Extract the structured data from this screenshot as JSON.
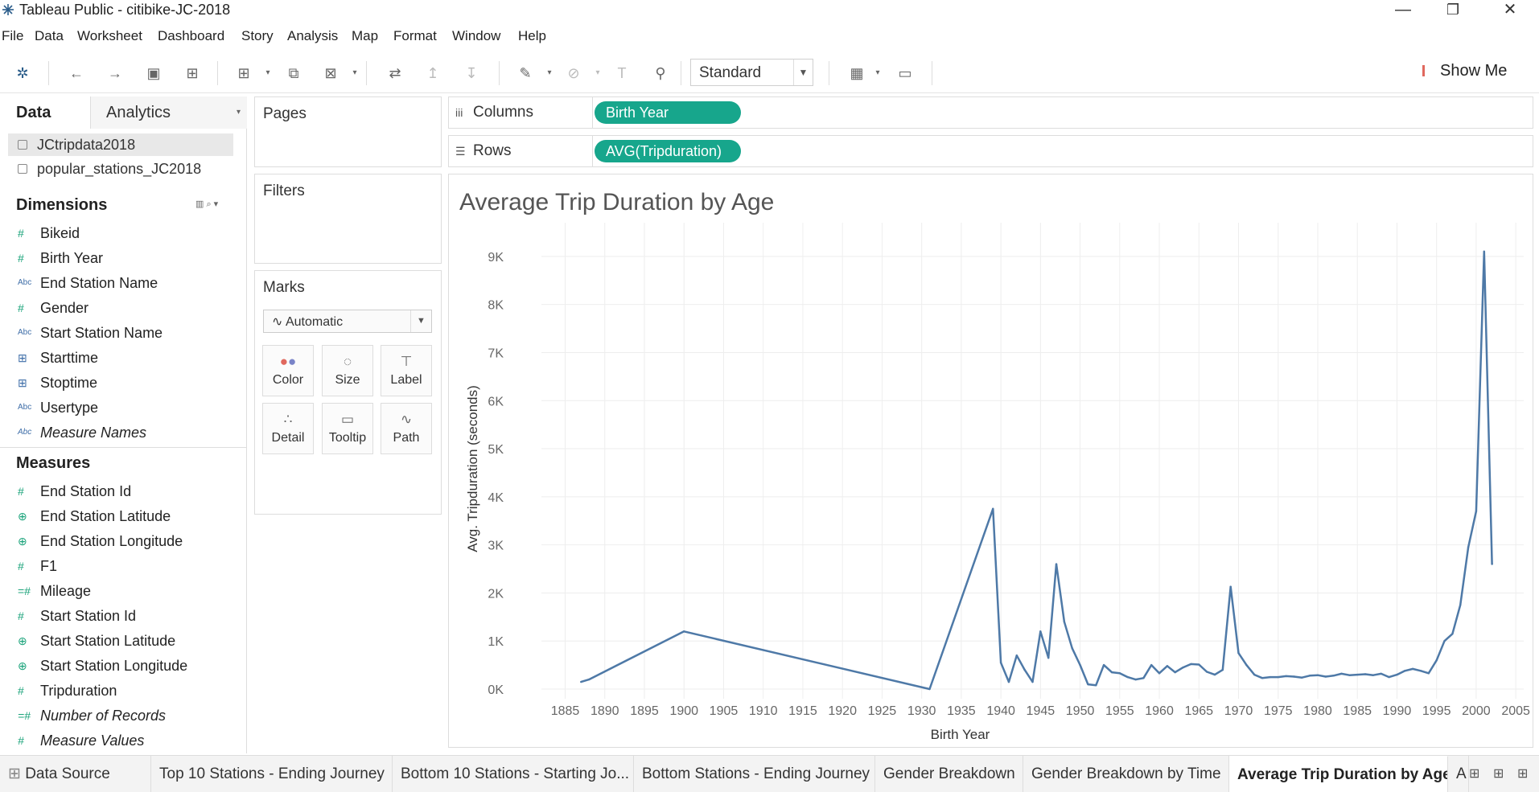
{
  "window": {
    "title": "Tableau Public - citibike-JC-2018",
    "minimize": "—",
    "restore": "❐",
    "close": "✕"
  },
  "menu": [
    "File",
    "Data",
    "Worksheet",
    "Dashboard",
    "Story",
    "Analysis",
    "Map",
    "Format",
    "Window",
    "Help"
  ],
  "toolbar": {
    "fit_value": "Standard",
    "show_me": "Show Me"
  },
  "data_pane": {
    "tab_data": "Data",
    "tab_analytics": "Analytics",
    "sources": [
      "JCtripdata2018",
      "popular_stations_JC2018"
    ],
    "dimensions_title": "Dimensions",
    "dimensions": [
      {
        "name": "Bikeid",
        "icon": "#",
        "kind": "num"
      },
      {
        "name": "Birth Year",
        "icon": "#",
        "kind": "num"
      },
      {
        "name": "End Station Name",
        "icon": "Abc",
        "kind": "abc"
      },
      {
        "name": "Gender",
        "icon": "#",
        "kind": "num"
      },
      {
        "name": "Start Station Name",
        "icon": "Abc",
        "kind": "abc"
      },
      {
        "name": "Starttime",
        "icon": "⊞",
        "kind": "date"
      },
      {
        "name": "Stoptime",
        "icon": "⊞",
        "kind": "date"
      },
      {
        "name": "Usertype",
        "icon": "Abc",
        "kind": "abc"
      },
      {
        "name": "Measure Names",
        "icon": "Abc",
        "kind": "abc",
        "italic": true
      }
    ],
    "measures_title": "Measures",
    "measures": [
      {
        "name": "End Station Id",
        "icon": "#",
        "kind": "num"
      },
      {
        "name": "End Station Latitude",
        "icon": "⊕",
        "kind": "geo"
      },
      {
        "name": "End Station Longitude",
        "icon": "⊕",
        "kind": "geo"
      },
      {
        "name": "F1",
        "icon": "#",
        "kind": "num"
      },
      {
        "name": "Mileage",
        "icon": "=#",
        "kind": "num"
      },
      {
        "name": "Start Station Id",
        "icon": "#",
        "kind": "num"
      },
      {
        "name": "Start Station Latitude",
        "icon": "⊕",
        "kind": "geo"
      },
      {
        "name": "Start Station Longitude",
        "icon": "⊕",
        "kind": "geo"
      },
      {
        "name": "Tripduration",
        "icon": "#",
        "kind": "num"
      },
      {
        "name": "Number of Records",
        "icon": "=#",
        "kind": "num",
        "italic": true
      },
      {
        "name": "Measure Values",
        "icon": "#",
        "kind": "num",
        "italic": true
      }
    ]
  },
  "cards": {
    "pages": "Pages",
    "filters": "Filters",
    "marks": "Marks",
    "mark_type": "Automatic",
    "mark_buttons": [
      "Color",
      "Size",
      "Label",
      "Detail",
      "Tooltip",
      "Path"
    ]
  },
  "shelves": {
    "columns_label": "Columns",
    "columns_pill": "Birth Year",
    "rows_label": "Rows",
    "rows_pill": "AVG(Tripduration)"
  },
  "viz": {
    "title": "Average Trip Duration by Age"
  },
  "chart_data": {
    "type": "line",
    "title": "Average Trip Duration by Age",
    "xlabel": "Birth Year",
    "ylabel": "Avg. Tripduration (seconds)",
    "xlim": [
      1882,
      2006
    ],
    "ylim": [
      -200,
      9700
    ],
    "xticks": [
      1885,
      1890,
      1895,
      1900,
      1905,
      1910,
      1915,
      1920,
      1925,
      1930,
      1935,
      1940,
      1945,
      1950,
      1955,
      1960,
      1965,
      1970,
      1975,
      1980,
      1985,
      1990,
      1995,
      2000,
      2005
    ],
    "ytick_values": [
      0,
      1000,
      2000,
      3000,
      4000,
      5000,
      6000,
      7000,
      8000,
      9000
    ],
    "ytick_labels": [
      "0K",
      "1K",
      "2K",
      "3K",
      "4K",
      "5K",
      "6K",
      "7K",
      "8K",
      "9K"
    ],
    "grid": true,
    "color": "#4e79a7",
    "x": [
      1887,
      1888,
      1900,
      1931,
      1939,
      1940,
      1941,
      1942,
      1943,
      1944,
      1945,
      1946,
      1947,
      1948,
      1949,
      1950,
      1951,
      1952,
      1953,
      1954,
      1955,
      1956,
      1957,
      1958,
      1959,
      1960,
      1961,
      1962,
      1963,
      1964,
      1965,
      1966,
      1967,
      1968,
      1969,
      1970,
      1971,
      1972,
      1973,
      1974,
      1975,
      1976,
      1977,
      1978,
      1979,
      1980,
      1981,
      1982,
      1983,
      1984,
      1985,
      1986,
      1987,
      1988,
      1989,
      1990,
      1991,
      1992,
      1993,
      1994,
      1995,
      1996,
      1997,
      1998,
      1999,
      2000,
      2001,
      2002
    ],
    "y": [
      150,
      200,
      1200,
      0,
      3750,
      550,
      150,
      700,
      400,
      150,
      1200,
      650,
      2600,
      1400,
      850,
      500,
      100,
      80,
      500,
      350,
      330,
      250,
      200,
      230,
      500,
      330,
      480,
      350,
      450,
      520,
      510,
      360,
      300,
      400,
      2130,
      750,
      500,
      300,
      230,
      250,
      250,
      270,
      260,
      240,
      280,
      290,
      260,
      280,
      320,
      290,
      300,
      310,
      290,
      320,
      250,
      300,
      380,
      420,
      380,
      330,
      600,
      1000,
      1150,
      1750,
      2950,
      3700,
      9100,
      2600
    ]
  },
  "sheet_tabs": {
    "data_source": "Data Source",
    "tabs": [
      "Top 10 Stations - Ending Journey",
      "Bottom 10 Stations - Starting Jo...",
      "Bottom Stations - Ending Journey",
      "Gender Breakdown",
      "Gender Breakdown by Time",
      "Average Trip Duration by Age",
      "A"
    ]
  }
}
